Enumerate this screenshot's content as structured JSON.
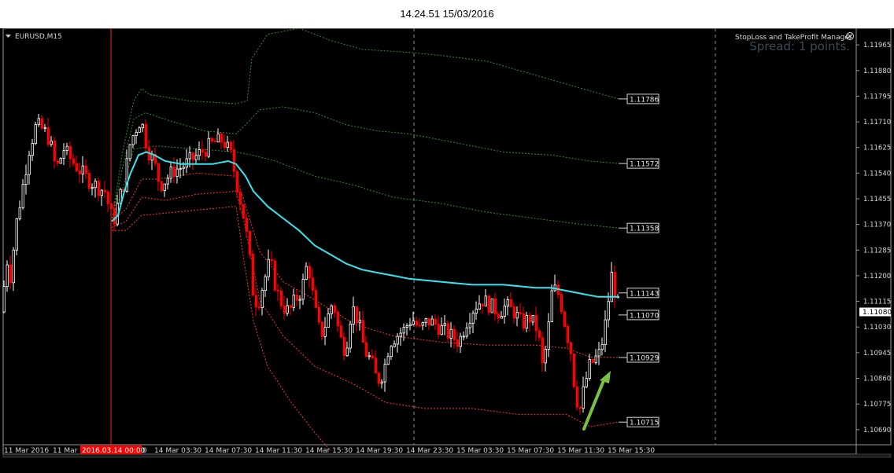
{
  "header": {
    "timestamp": "14.24.51 15/03/2016"
  },
  "chart_data": {
    "type": "candlestick",
    "symbol_label": "EURUSD,M15",
    "ea_label": "StopLoss and TakeProfit Manager",
    "spread_label": "Spread: 1 points.",
    "colors": {
      "background": "#000000",
      "bull": "#ffffff",
      "bear": "#ff0000",
      "ma": "#33e6f2",
      "upper_bands": "#2e8f2e",
      "lower_bands": "#ff3333",
      "arrow": "#7ac143",
      "grid": "#8a8a8a",
      "axis_text": "#d8d8d8"
    },
    "ylim": [
      1.1064,
      1.1202
    ],
    "y_ticks": [
      "1.11965",
      "1.11880",
      "1.11795",
      "1.11710",
      "1.11625",
      "1.11540",
      "1.11455",
      "1.11370",
      "1.11285",
      "1.11200",
      "1.11115",
      "1.11030",
      "1.10945",
      "1.10860",
      "1.10775",
      "1.10690"
    ],
    "current_price": "1.11080",
    "x_ticks": [
      "11 Mar 2016",
      "11 Mar",
      "0",
      "14 Mar 03:30",
      "14 Mar 07:30",
      "14 Mar 11:30",
      "14 Mar 15:30",
      "14 Mar 19:30",
      "14 Mar 23:30",
      "15 Mar 03:30",
      "15 Mar 07:30",
      "15 Mar 11:30",
      "15 Mar 15:30"
    ],
    "cursor_label": "2016.03.14 00:00",
    "levels": [
      {
        "label": "1.11786",
        "value": 1.11786
      },
      {
        "label": "1.11572",
        "value": 1.11572
      },
      {
        "label": "1.11358",
        "value": 1.11358
      },
      {
        "label": "1.11143",
        "value": 1.11143
      },
      {
        "label": "1.11070",
        "value": 1.1107
      },
      {
        "label": "1.10929",
        "value": 1.10929
      },
      {
        "label": "1.10715",
        "value": 1.10715
      }
    ],
    "price_path": [
      [
        0,
        1.1108
      ],
      [
        8,
        1.1125
      ],
      [
        12,
        1.112
      ],
      [
        20,
        1.1138
      ],
      [
        28,
        1.115
      ],
      [
        36,
        1.1162
      ],
      [
        45,
        1.117
      ],
      [
        55,
        1.1168
      ],
      [
        62,
        1.1165
      ],
      [
        70,
        1.1155
      ],
      [
        80,
        1.1162
      ],
      [
        90,
        1.1158
      ],
      [
        100,
        1.1155
      ],
      [
        110,
        1.1152
      ],
      [
        120,
        1.115
      ],
      [
        132,
        1.1148
      ],
      [
        140,
        1.114
      ],
      [
        142,
        1.1137
      ],
      [
        150,
        1.1145
      ],
      [
        158,
        1.1152
      ],
      [
        162,
        1.1162
      ],
      [
        170,
        1.1168
      ],
      [
        178,
        1.1172
      ],
      [
        186,
        1.1162
      ],
      [
        194,
        1.1158
      ],
      [
        202,
        1.115
      ],
      [
        210,
        1.1152
      ],
      [
        220,
        1.1155
      ],
      [
        230,
        1.1156
      ],
      [
        240,
        1.1158
      ],
      [
        250,
        1.116
      ],
      [
        260,
        1.1162
      ],
      [
        270,
        1.1164
      ],
      [
        282,
        1.1165
      ],
      [
        292,
        1.116
      ],
      [
        300,
        1.115
      ],
      [
        308,
        1.114
      ],
      [
        314,
        1.113
      ],
      [
        320,
        1.1115
      ],
      [
        326,
        1.111
      ],
      [
        334,
        1.1118
      ],
      [
        342,
        1.1125
      ],
      [
        350,
        1.1115
      ],
      [
        358,
        1.111
      ],
      [
        366,
        1.1108
      ],
      [
        374,
        1.1112
      ],
      [
        382,
        1.1115
      ],
      [
        390,
        1.1125
      ],
      [
        398,
        1.111
      ],
      [
        406,
        1.11
      ],
      [
        414,
        1.1105
      ],
      [
        422,
        1.1112
      ],
      [
        430,
        1.11
      ],
      [
        438,
        1.1095
      ],
      [
        446,
        1.111
      ],
      [
        454,
        1.1105
      ],
      [
        462,
        1.1095
      ],
      [
        470,
        1.1092
      ],
      [
        478,
        1.1085
      ],
      [
        486,
        1.1088
      ],
      [
        494,
        1.1098
      ],
      [
        502,
        1.11
      ],
      [
        512,
        1.1102
      ],
      [
        522,
        1.1106
      ],
      [
        532,
        1.1102
      ],
      [
        542,
        1.1105
      ],
      [
        552,
        1.1104
      ],
      [
        562,
        1.1102
      ],
      [
        572,
        1.11
      ],
      [
        582,
        1.1098
      ],
      [
        592,
        1.1105
      ],
      [
        602,
        1.111
      ],
      [
        612,
        1.1112
      ],
      [
        622,
        1.111
      ],
      [
        632,
        1.1108
      ],
      [
        642,
        1.111
      ],
      [
        652,
        1.1108
      ],
      [
        662,
        1.1104
      ],
      [
        672,
        1.1106
      ],
      [
        682,
        1.1102
      ],
      [
        688,
        1.109
      ],
      [
        694,
        1.1098
      ],
      [
        700,
        1.1114
      ],
      [
        706,
        1.1116
      ],
      [
        712,
        1.111
      ],
      [
        718,
        1.1102
      ],
      [
        724,
        1.1095
      ],
      [
        730,
        1.108
      ],
      [
        736,
        1.1076
      ],
      [
        742,
        1.1084
      ],
      [
        748,
        1.109
      ],
      [
        754,
        1.1092
      ],
      [
        760,
        1.1094
      ],
      [
        766,
        1.11
      ],
      [
        772,
        1.1112
      ],
      [
        776,
        1.112
      ],
      [
        780,
        1.1115
      ],
      [
        786,
        1.1108
      ]
    ],
    "ma_path": [
      [
        142,
        1.1138
      ],
      [
        150,
        1.114
      ],
      [
        158,
        1.1148
      ],
      [
        166,
        1.1154
      ],
      [
        176,
        1.116
      ],
      [
        186,
        1.1161
      ],
      [
        196,
        1.116
      ],
      [
        210,
        1.1158
      ],
      [
        230,
        1.1157
      ],
      [
        250,
        1.1157
      ],
      [
        270,
        1.1157
      ],
      [
        290,
        1.1158
      ],
      [
        300,
        1.1157
      ],
      [
        312,
        1.1153
      ],
      [
        322,
        1.1148
      ],
      [
        340,
        1.1143
      ],
      [
        360,
        1.1139
      ],
      [
        380,
        1.1135
      ],
      [
        400,
        1.113
      ],
      [
        420,
        1.1127
      ],
      [
        440,
        1.1124
      ],
      [
        460,
        1.1122
      ],
      [
        480,
        1.1121
      ],
      [
        500,
        1.112
      ],
      [
        520,
        1.1119
      ],
      [
        560,
        1.1118
      ],
      [
        600,
        1.1117
      ],
      [
        640,
        1.1117
      ],
      [
        680,
        1.1116
      ],
      [
        700,
        1.1116
      ],
      [
        720,
        1.1115
      ],
      [
        740,
        1.1114
      ],
      [
        760,
        1.1113
      ],
      [
        786,
        1.1113
      ]
    ],
    "upper_bands": [
      [
        [
          142,
          1.1138
        ],
        [
          155,
          1.116
        ],
        [
          170,
          1.1178
        ],
        [
          180,
          1.1182
        ],
        [
          190,
          1.118
        ],
        [
          240,
          1.1178
        ],
        [
          300,
          1.1177
        ],
        [
          314,
          1.1178
        ],
        [
          320,
          1.1192
        ],
        [
          340,
          1.12
        ],
        [
          380,
          1.1202
        ],
        [
          420,
          1.1198
        ],
        [
          460,
          1.1195
        ],
        [
          520,
          1.1194
        ],
        [
          560,
          1.1193
        ],
        [
          620,
          1.1191
        ],
        [
          660,
          1.1188
        ],
        [
          700,
          1.1185
        ],
        [
          740,
          1.1182
        ],
        [
          786,
          1.11786
        ]
      ],
      [
        [
          142,
          1.1138
        ],
        [
          155,
          1.1155
        ],
        [
          170,
          1.1172
        ],
        [
          185,
          1.1174
        ],
        [
          220,
          1.1171
        ],
        [
          260,
          1.1168
        ],
        [
          300,
          1.1167
        ],
        [
          312,
          1.117
        ],
        [
          330,
          1.1175
        ],
        [
          360,
          1.1176
        ],
        [
          400,
          1.1174
        ],
        [
          440,
          1.117
        ],
        [
          480,
          1.1168
        ],
        [
          520,
          1.1167
        ],
        [
          580,
          1.1164
        ],
        [
          640,
          1.1161
        ],
        [
          700,
          1.116
        ],
        [
          750,
          1.1158
        ],
        [
          786,
          1.11572
        ]
      ],
      [
        [
          142,
          1.1138
        ],
        [
          155,
          1.1148
        ],
        [
          170,
          1.1162
        ],
        [
          200,
          1.1163
        ],
        [
          250,
          1.1162
        ],
        [
          300,
          1.1161
        ],
        [
          320,
          1.116
        ],
        [
          350,
          1.1158
        ],
        [
          400,
          1.1153
        ],
        [
          450,
          1.115
        ],
        [
          500,
          1.1146
        ],
        [
          560,
          1.1144
        ],
        [
          620,
          1.1141
        ],
        [
          680,
          1.1139
        ],
        [
          740,
          1.1137
        ],
        [
          786,
          1.11358
        ]
      ]
    ],
    "lower_bands": [
      [
        [
          142,
          1.1138
        ],
        [
          160,
          1.1142
        ],
        [
          180,
          1.1152
        ],
        [
          200,
          1.1152
        ],
        [
          250,
          1.1154
        ],
        [
          300,
          1.1153
        ],
        [
          310,
          1.1145
        ],
        [
          330,
          1.1128
        ],
        [
          360,
          1.1118
        ],
        [
          400,
          1.1112
        ],
        [
          450,
          1.1104
        ],
        [
          500,
          1.11
        ],
        [
          560,
          1.1098
        ],
        [
          620,
          1.1097
        ],
        [
          680,
          1.1097
        ],
        [
          720,
          1.1096
        ],
        [
          750,
          1.1093
        ],
        [
          786,
          1.10929
        ]
      ],
      [
        [
          142,
          1.1136
        ],
        [
          160,
          1.1138
        ],
        [
          180,
          1.1146
        ],
        [
          210,
          1.1145
        ],
        [
          250,
          1.1147
        ],
        [
          300,
          1.1148
        ],
        [
          310,
          1.1138
        ],
        [
          330,
          1.1112
        ],
        [
          360,
          1.11
        ],
        [
          400,
          1.109
        ],
        [
          450,
          1.1084
        ],
        [
          490,
          1.1078
        ],
        [
          540,
          1.1076
        ],
        [
          600,
          1.1076
        ],
        [
          660,
          1.1074
        ],
        [
          720,
          1.1074
        ],
        [
          750,
          1.107
        ],
        [
          786,
          1.10715
        ]
      ],
      [
        [
          142,
          1.1135
        ],
        [
          160,
          1.1135
        ],
        [
          180,
          1.114
        ],
        [
          220,
          1.1141
        ],
        [
          260,
          1.1142
        ],
        [
          300,
          1.1143
        ],
        [
          310,
          1.1125
        ],
        [
          322,
          1.1105
        ],
        [
          340,
          1.109
        ],
        [
          370,
          1.1078
        ],
        [
          400,
          1.1068
        ],
        [
          420,
          1.1062
        ]
      ]
    ]
  }
}
